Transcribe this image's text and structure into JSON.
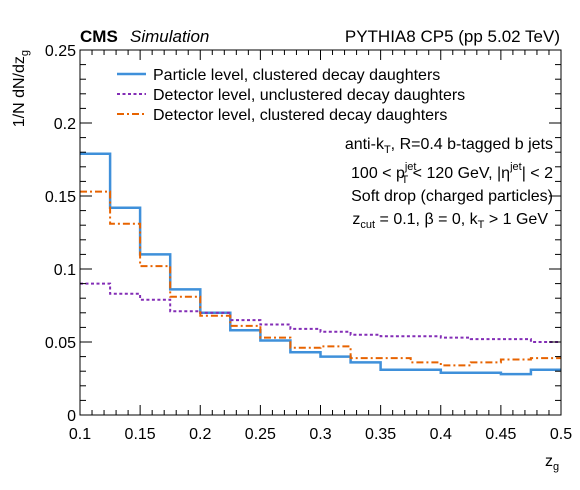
{
  "header": {
    "cms": "CMS",
    "simulation": "Simulation",
    "right": "PYTHIA8 CP5 (pp 5.02 TeV)"
  },
  "axes": {
    "y_base": "1/N dN/dz",
    "y_sub": "g",
    "x_base": "z",
    "x_sub": "g"
  },
  "annotations": {
    "l1_a": "anti-k",
    "l1_sub": "T",
    "l1_b": ", R=0.4 b-tagged b jets",
    "l2_a": "100 < p",
    "l2_sup": "jet",
    "l2_sub": "T",
    "l2_b": " < 120 GeV, |η",
    "l2_sup2": "jet",
    "l2_c": "| < 2",
    "l3": "Soft drop (charged particles)",
    "l4_a": "z",
    "l4_sub": "cut",
    "l4_b": " = 0.1, β = 0, k",
    "l4_sub2": "T",
    "l4_c": " > 1 GeV"
  },
  "chart_data": {
    "type": "line",
    "step": true,
    "bin_edges": [
      0.1,
      0.125,
      0.15,
      0.175,
      0.2,
      0.225,
      0.25,
      0.275,
      0.3,
      0.325,
      0.35,
      0.375,
      0.4,
      0.425,
      0.45,
      0.475,
      0.5
    ],
    "xlim": [
      0.1,
      0.5
    ],
    "ylim": [
      0,
      0.25
    ],
    "x_ticks": [
      "0.1",
      "0.15",
      "0.2",
      "0.25",
      "0.3",
      "0.35",
      "0.4",
      "0.45",
      "0.5"
    ],
    "y_ticks": [
      "0",
      "0.05",
      "0.1",
      "0.15",
      "0.2",
      "0.25"
    ],
    "legend_position": "top",
    "series": [
      {
        "name": "Particle level, clustered decay daughters",
        "color": "#3f90da",
        "style": "solid",
        "values": [
          0.179,
          0.142,
          0.11,
          0.086,
          0.07,
          0.058,
          0.051,
          0.043,
          0.04,
          0.036,
          0.031,
          0.031,
          0.029,
          0.029,
          0.028,
          0.031
        ]
      },
      {
        "name": "Detector level, unclustered decay daughters",
        "color": "#832db6",
        "style": "dotted",
        "values": [
          0.09,
          0.083,
          0.079,
          0.071,
          0.07,
          0.065,
          0.062,
          0.059,
          0.057,
          0.055,
          0.054,
          0.054,
          0.053,
          0.052,
          0.052,
          0.05
        ]
      },
      {
        "name": "Detector level, clustered decay daughters",
        "color": "#e76300",
        "style": "dashdot",
        "values": [
          0.153,
          0.131,
          0.102,
          0.081,
          0.068,
          0.061,
          0.053,
          0.046,
          0.047,
          0.039,
          0.039,
          0.036,
          0.034,
          0.036,
          0.038,
          0.039
        ]
      }
    ]
  }
}
